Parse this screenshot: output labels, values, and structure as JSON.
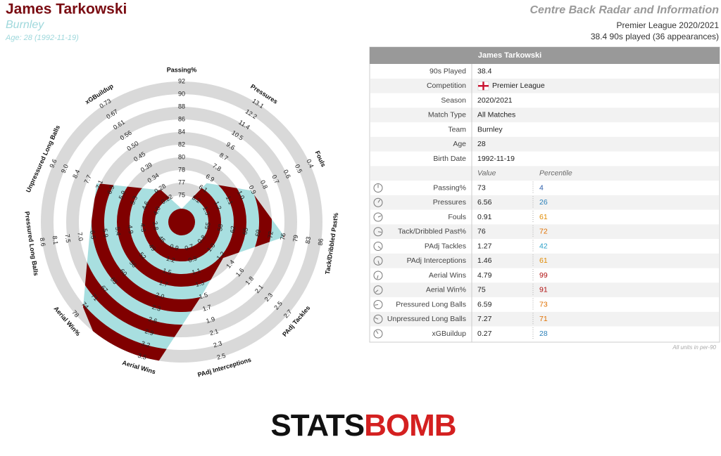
{
  "header": {
    "title": "James Tarkowski",
    "team": "Burnley",
    "age": "Age: 28 (1992-11-19)",
    "report": "Centre Back Radar and Information",
    "competition": "Premier League 2020/2021",
    "played": "38.4 90s played (36 appearances)"
  },
  "table": {
    "title": "James Tarkowski",
    "info": [
      {
        "label": "90s Played",
        "value": "38.4"
      },
      {
        "label": "Competition",
        "value": "Premier League"
      },
      {
        "label": "Season",
        "value": "2020/2021"
      },
      {
        "label": "Match Type",
        "value": "All Matches"
      },
      {
        "label": "Team",
        "value": "Burnley"
      },
      {
        "label": "Age",
        "value": "28"
      },
      {
        "label": "Birth Date",
        "value": "1992-11-19"
      }
    ],
    "value_header": "Value",
    "percentile_header": "Percentile",
    "footnote": "All units in per-90"
  },
  "chart_data": {
    "type": "radar",
    "fill_color": "#a8dfe0",
    "ring_color": "#800000",
    "grid_color": "#d9d9d9",
    "stats": [
      {
        "name": "Passing%",
        "value": 73,
        "percentile": 4,
        "color": "#2a5caa",
        "ticks": [
          75,
          77,
          78,
          80,
          82,
          84,
          86,
          88,
          90,
          92
        ]
      },
      {
        "name": "Pressures",
        "value": 6.56,
        "percentile": 26,
        "color": "#2a7fb8",
        "ticks": [
          5.2,
          6.1,
          6.9,
          7.8,
          8.7,
          9.6,
          10.5,
          11.4,
          12.2,
          13.1
        ]
      },
      {
        "name": "Fouls",
        "value": 0.91,
        "percentile": 61,
        "color": "#e08a00",
        "ticks": [
          1.3,
          1.2,
          1.1,
          {
            "value": 1,
            "label": "1.0"
          },
          0.9,
          0.8,
          0.7,
          0.6,
          0.5,
          0.4
        ]
      },
      {
        "name": "Tack/Dribbled Past%",
        "value": 76,
        "percentile": 72,
        "color": "#e07000",
        "ticks": [
          55,
          58,
          62,
          65,
          69,
          72,
          76,
          79,
          83,
          86
        ]
      },
      {
        "name": "PAdj Tackles",
        "value": 1.27,
        "percentile": 42,
        "color": "#2a9fc8",
        "ticks": [
          0.8,
          {
            "value": 1,
            "label": "1.0"
          },
          1.2,
          1.4,
          1.6,
          1.8,
          2.1,
          2.3,
          2.5,
          2.7
        ]
      },
      {
        "name": "PAdj Interceptions",
        "value": 1.46,
        "percentile": 61,
        "color": "#e08a00",
        "ticks": [
          0.7,
          0.9,
          1.1,
          1.3,
          1.5,
          1.7,
          1.9,
          2.1,
          2.3,
          2.5
        ]
      },
      {
        "name": "Aerial Wins",
        "value": 4.79,
        "percentile": 99,
        "color": "#b01010",
        "ticks": [
          0.9,
          1.2,
          1.5,
          1.7,
          {
            "value": 2,
            "label": "2.0"
          },
          2.3,
          2.6,
          2.9,
          3.2,
          3.5
        ]
      },
      {
        "name": "Aerial Win%",
        "value": 75,
        "percentile": 91,
        "color": "#b01010",
        "ticks": [
          45,
          49,
          52,
          56,
          60,
          63,
          67,
          71,
          74,
          78
        ]
      },
      {
        "name": "Pressured Long Balls",
        "value": 6.59,
        "percentile": 73,
        "color": "#e07000",
        "ticks": [
          3.8,
          4.3,
          4.9,
          5.4,
          5.9,
          6.5,
          {
            "value": 7,
            "label": "7.0"
          },
          7.5,
          8.1,
          8.6
        ]
      },
      {
        "name": "Unpressured Long Balls",
        "value": 7.27,
        "percentile": 71,
        "color": "#e07000",
        "ticks": [
          {
            "value": 4,
            "label": "4.0"
          },
          4.6,
          5.3,
          5.9,
          6.5,
          7.1,
          7.7,
          8.4,
          {
            "value": 9,
            "label": "9.0"
          },
          9.6
        ]
      },
      {
        "name": "xGBuildup",
        "value": 0.27,
        "percentile": 28,
        "color": "#2a7fb8",
        "ticks": [
          0.22,
          0.28,
          0.34,
          0.39,
          0.45,
          {
            "value": 0.5,
            "label": "0.50"
          },
          0.56,
          0.61,
          0.67,
          0.73
        ]
      }
    ]
  },
  "logo": [
    "STATS",
    "BOMB"
  ]
}
